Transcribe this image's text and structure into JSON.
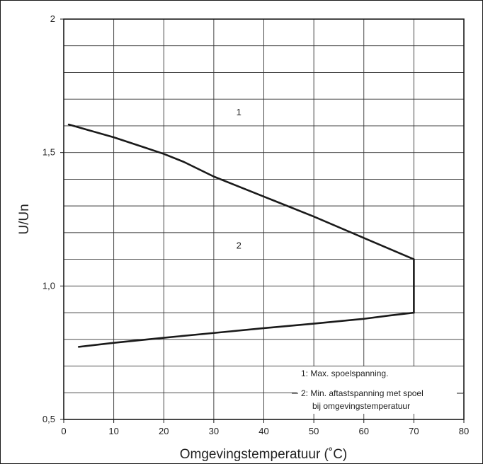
{
  "chart_data": {
    "type": "line",
    "xlabel": "Omgevingstemperatuur (˚C)",
    "ylabel": "U/Un",
    "xlim": [
      0,
      80
    ],
    "ylim": [
      0.5,
      2.0
    ],
    "x_ticks": [
      0,
      10,
      20,
      30,
      40,
      50,
      60,
      70,
      80
    ],
    "x_tick_labels": [
      "0",
      "10",
      "20",
      "30",
      "40",
      "50",
      "60",
      "70",
      "80"
    ],
    "y_ticks": [
      0.5,
      1.0,
      1.5,
      2.0
    ],
    "y_tick_labels": [
      "0,5",
      "1,0",
      "1,5",
      "2"
    ],
    "grid": true,
    "x_grid_step": 10,
    "y_grid_step": 0.1,
    "series": [
      {
        "label": "1",
        "x": [
          1,
          10,
          16,
          20,
          24,
          30,
          40,
          50,
          60,
          70
        ],
        "y": [
          1.605,
          1.557,
          1.52,
          1.495,
          1.465,
          1.41,
          1.335,
          1.26,
          1.18,
          1.1
        ]
      },
      {
        "label": "2",
        "x": [
          3,
          10,
          20,
          30,
          40,
          50,
          60,
          65,
          70
        ],
        "y": [
          0.772,
          0.787,
          0.806,
          0.824,
          0.842,
          0.859,
          0.877,
          0.889,
          0.9
        ]
      },
      {
        "label": "",
        "x": [
          70,
          70
        ],
        "y": [
          1.1,
          0.9
        ]
      }
    ],
    "region_labels": [
      {
        "text": "1",
        "x": 35,
        "y": 1.64
      },
      {
        "text": "2",
        "x": 35,
        "y": 1.14
      }
    ],
    "legend": {
      "placement": "bottom-right",
      "items": [
        "1:  Max. spoelspanning.",
        "2:  Min. aftastspanning met spoel",
        "bij omgevingstemperatuur"
      ]
    }
  }
}
